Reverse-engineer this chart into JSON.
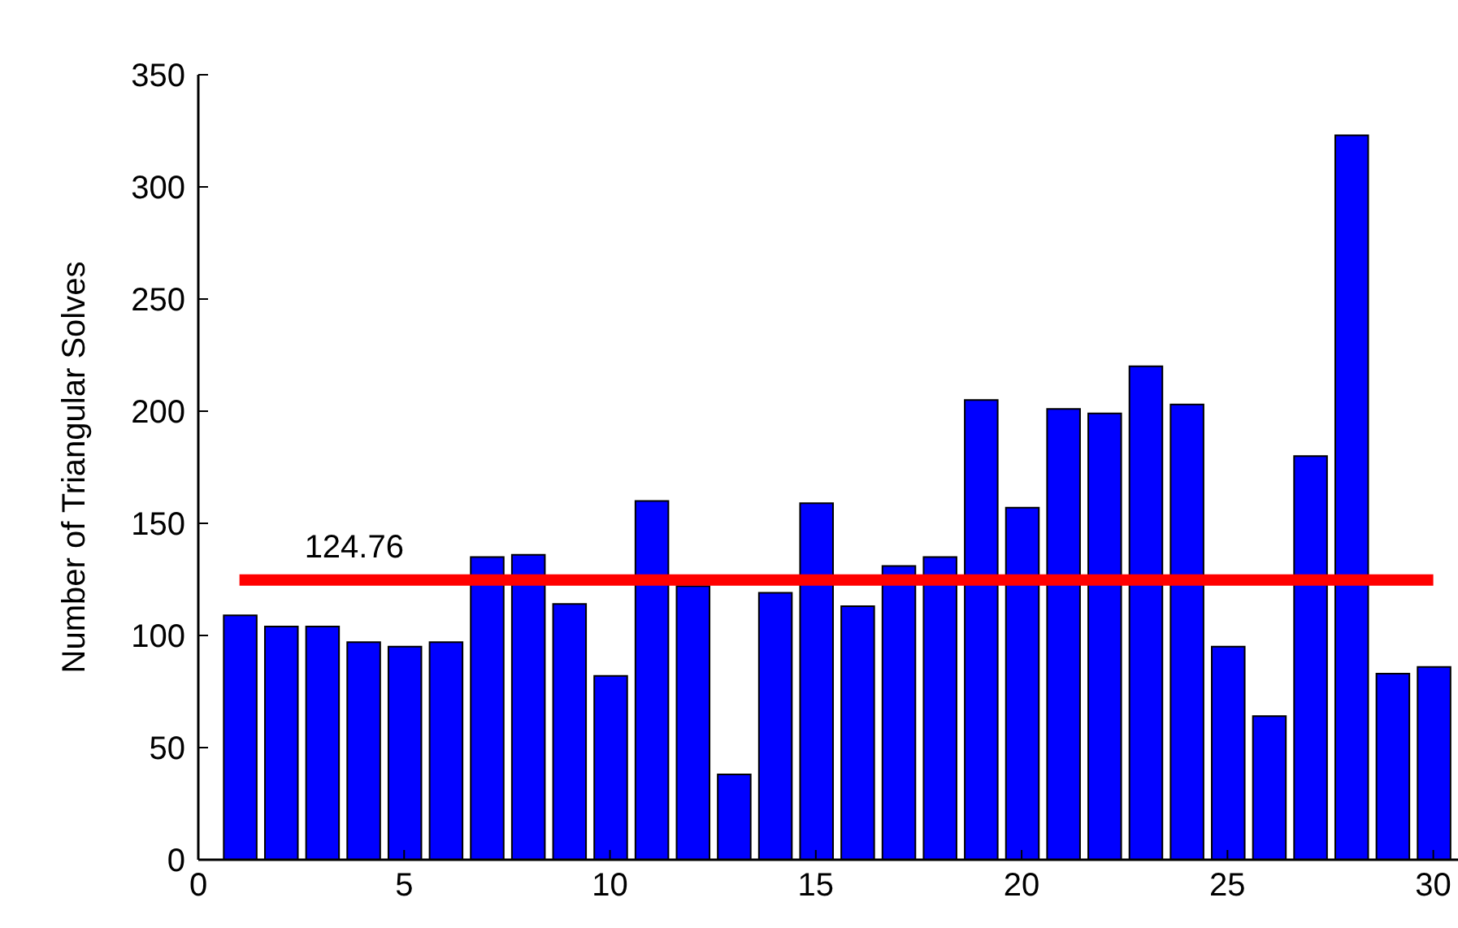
{
  "chart_data": {
    "type": "bar",
    "ylabel": "Number of Triangular Solves",
    "x": [
      1,
      2,
      3,
      4,
      5,
      6,
      7,
      8,
      9,
      10,
      11,
      12,
      13,
      14,
      15,
      16,
      17,
      18,
      19,
      20,
      21,
      22,
      23,
      24,
      25,
      26,
      27,
      28,
      29,
      30
    ],
    "values": [
      109,
      104,
      104,
      97,
      95,
      97,
      135,
      136,
      114,
      82,
      160,
      122,
      38,
      119,
      159,
      113,
      131,
      135,
      205,
      157,
      201,
      199,
      220,
      203,
      95,
      64,
      180,
      323,
      83,
      86
    ],
    "color": "#0000ff",
    "xlim": [
      0,
      30.6
    ],
    "xticks": [
      0,
      5,
      10,
      15,
      20,
      25,
      30
    ],
    "ylim": [
      0,
      350
    ],
    "yticks": [
      0,
      50,
      100,
      150,
      200,
      250,
      300,
      350
    ],
    "ref_lines": [
      {
        "axis": "y",
        "value": 124.76,
        "label": "124.76",
        "color": "#ff0000"
      }
    ],
    "grid": false,
    "legend": false
  }
}
